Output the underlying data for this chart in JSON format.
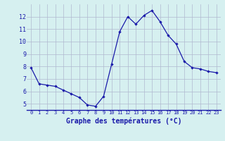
{
  "hours": [
    0,
    1,
    2,
    3,
    4,
    5,
    6,
    7,
    8,
    9,
    10,
    11,
    12,
    13,
    14,
    15,
    16,
    17,
    18,
    19,
    20,
    21,
    22,
    23
  ],
  "temps": [
    7.9,
    6.6,
    6.5,
    6.4,
    6.1,
    5.8,
    5.5,
    4.9,
    4.8,
    5.6,
    8.2,
    10.8,
    12.0,
    11.4,
    12.1,
    12.5,
    11.6,
    10.5,
    9.8,
    8.4,
    7.9,
    7.8,
    7.6,
    7.5
  ],
  "line_color": "#1a1aaa",
  "marker": "D",
  "marker_size": 2.2,
  "bg_color": "#d6f0f0",
  "grid_color": "#b0b8d0",
  "xlabel": "Graphe des températures (°C)",
  "tick_label_color": "#1a1aaa",
  "ylim": [
    4.5,
    13.0
  ],
  "yticks": [
    5,
    6,
    7,
    8,
    9,
    10,
    11,
    12
  ],
  "xlim": [
    -0.5,
    23.5
  ],
  "xticks": [
    0,
    1,
    2,
    3,
    4,
    5,
    6,
    7,
    8,
    9,
    10,
    11,
    12,
    13,
    14,
    15,
    16,
    17,
    18,
    19,
    20,
    21,
    22,
    23
  ]
}
